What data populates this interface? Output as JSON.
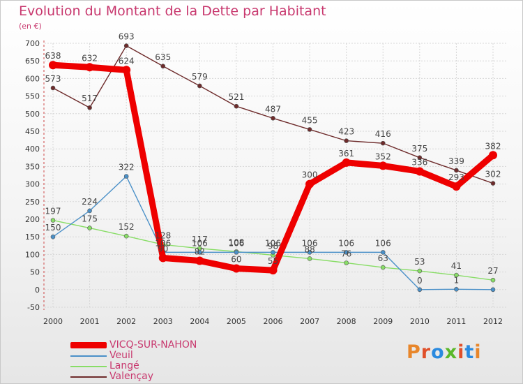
{
  "title": "Evolution du Montant de la Dette par Habitant",
  "subtitle": "(en €)",
  "logo_text": "Proxiti",
  "logo_colors": [
    "#e8862a",
    "#e0502a",
    "#2a8adf",
    "#5ab82a",
    "#e0502a",
    "#2a8adf",
    "#e8862a"
  ],
  "chart_data": {
    "type": "line",
    "x": [
      "2000",
      "2001",
      "2002",
      "2003",
      "2004",
      "2005",
      "2006",
      "2007",
      "2008",
      "2009",
      "2010",
      "2011",
      "2012"
    ],
    "ylim": [
      -50,
      700
    ],
    "yticks": [
      "-50",
      "0",
      "50",
      "100",
      "150",
      "200",
      "250",
      "300",
      "350",
      "400",
      "450",
      "500",
      "550",
      "600",
      "650",
      "700"
    ],
    "grid": true,
    "legend_position": "bottom-left",
    "series": [
      {
        "name": "VICQ-SUR-NAHON",
        "color": "#ee0000",
        "values": [
          638,
          632,
          624,
          90,
          82,
          60,
          55,
          300,
          361,
          352,
          336,
          293,
          382
        ],
        "labels": [
          "638",
          "632",
          "624",
          "90",
          "82",
          "60",
          "55",
          "300",
          "361",
          "352",
          "336",
          "293",
          "382"
        ]
      },
      {
        "name": "Veuil",
        "color": "#4a90c8",
        "values": [
          150,
          224,
          322,
          106,
          106,
          106,
          106,
          106,
          106,
          106,
          0,
          1,
          0
        ],
        "labels": [
          "150",
          "224",
          "322",
          "106",
          "106",
          "106",
          "106",
          "106",
          "106",
          "106",
          "0",
          "1",
          ""
        ]
      },
      {
        "name": "Langé",
        "color": "#88dd66",
        "values": [
          197,
          175,
          152,
          128,
          117,
          108,
          98,
          88,
          76,
          63,
          53,
          41,
          27
        ],
        "labels": [
          "197",
          "175",
          "152",
          "128",
          "117",
          "108",
          "98",
          "88",
          "76",
          "63",
          "53",
          "41",
          "27"
        ]
      },
      {
        "name": "Valençay",
        "color": "#6e2b2b",
        "values": [
          573,
          517,
          693,
          635,
          579,
          521,
          487,
          455,
          423,
          416,
          375,
          339,
          302
        ],
        "labels": [
          "573",
          "517",
          "693",
          "635",
          "579",
          "521",
          "487",
          "455",
          "423",
          "416",
          "375",
          "339",
          "302"
        ]
      }
    ]
  }
}
